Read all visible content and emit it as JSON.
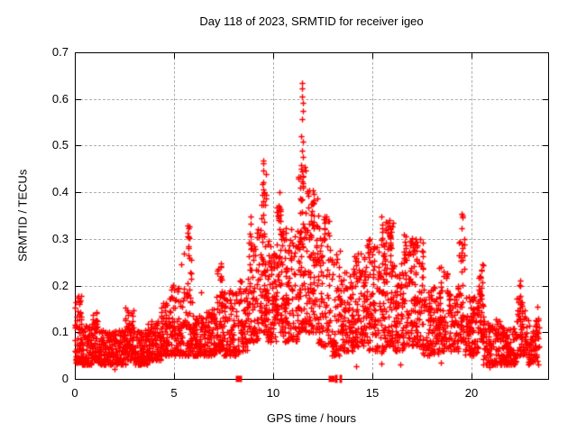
{
  "title": "Day 118 of 2023, SRMTID for receiver igeo",
  "colors": {
    "points": "#ff0000",
    "grid": "#b0b0b0",
    "axis": "#000000",
    "background": "#ffffff",
    "text": "#000000"
  },
  "chart_data": {
    "type": "scatter",
    "title": "Day 118 of 2023, SRMTID for receiver igeo",
    "xlabel": "GPS time / hours",
    "ylabel": "SRMTID / TECUs",
    "series_name": "SRMTID",
    "xlim": [
      0,
      23.86
    ],
    "ylim": [
      0,
      0.7
    ],
    "grid": true,
    "legend": "none",
    "xticks": [
      {
        "v": 0,
        "label": "0",
        "grid": false
      },
      {
        "v": 5,
        "label": "5",
        "grid": true
      },
      {
        "v": 10,
        "label": "10",
        "grid": true
      },
      {
        "v": 15,
        "label": "15",
        "grid": true
      },
      {
        "v": 20,
        "label": "20",
        "grid": true
      }
    ],
    "yticks": [
      {
        "v": 0.0,
        "label": "0",
        "grid": false
      },
      {
        "v": 0.1,
        "label": "0.1",
        "grid": true
      },
      {
        "v": 0.2,
        "label": "0.2",
        "grid": true
      },
      {
        "v": 0.3,
        "label": "0.3",
        "grid": true
      },
      {
        "v": 0.4,
        "label": "0.4",
        "grid": true
      },
      {
        "v": 0.5,
        "label": "0.5",
        "grid": true
      },
      {
        "v": 0.6,
        "label": "0.6",
        "grid": true
      },
      {
        "v": 0.7,
        "label": "0.7",
        "grid": false
      }
    ],
    "marker": {
      "shape": "plus",
      "size": 7,
      "color": "#ff0000"
    },
    "seed": 118,
    "column_snap": {
      "interval": 0.1,
      "jitter": 0.05,
      "fraction": 0.7
    },
    "bands_keys": [
      "t0",
      "t1",
      "n",
      "y_min",
      "y_max",
      "skew"
    ],
    "bands": [
      [
        0.02,
        0.35,
        70,
        0.035,
        0.18,
        1.6
      ],
      [
        0.35,
        0.85,
        80,
        0.03,
        0.115,
        1.8
      ],
      [
        0.85,
        1.15,
        55,
        0.04,
        0.145,
        1.6
      ],
      [
        1.15,
        2.55,
        210,
        0.03,
        0.105,
        1.5
      ],
      [
        2.55,
        2.95,
        70,
        0.04,
        0.155,
        1.6
      ],
      [
        2.95,
        3.65,
        105,
        0.03,
        0.105,
        1.5
      ],
      [
        3.65,
        4.35,
        105,
        0.04,
        0.125,
        1.5
      ],
      [
        4.35,
        4.75,
        60,
        0.05,
        0.165,
        1.5
      ],
      [
        4.75,
        5.35,
        80,
        0.05,
        0.205,
        1.7
      ],
      [
        5.35,
        5.95,
        80,
        0.05,
        0.27,
        1.8
      ],
      [
        5.95,
        6.55,
        80,
        0.05,
        0.135,
        1.5
      ],
      [
        6.55,
        7.15,
        80,
        0.05,
        0.15,
        1.5
      ],
      [
        7.15,
        7.5,
        50,
        0.06,
        0.25,
        1.7
      ],
      [
        7.5,
        8.28,
        95,
        0.05,
        0.19,
        1.6
      ],
      [
        8.32,
        8.75,
        55,
        0.06,
        0.22,
        1.5
      ],
      [
        8.75,
        9.35,
        80,
        0.08,
        0.33,
        1.7
      ],
      [
        9.35,
        9.65,
        60,
        0.1,
        0.44,
        1.6
      ],
      [
        9.65,
        10.15,
        80,
        0.08,
        0.3,
        1.5
      ],
      [
        10.15,
        10.5,
        60,
        0.1,
        0.38,
        1.5
      ],
      [
        10.5,
        11.25,
        105,
        0.08,
        0.33,
        1.5
      ],
      [
        11.25,
        11.75,
        90,
        0.1,
        0.47,
        1.5
      ],
      [
        11.75,
        12.25,
        80,
        0.1,
        0.41,
        1.6
      ],
      [
        12.25,
        12.95,
        90,
        0.07,
        0.35,
        1.7
      ],
      [
        12.97,
        13.45,
        60,
        0.05,
        0.28,
        1.7
      ],
      [
        13.45,
        14.05,
        85,
        0.06,
        0.23,
        1.5
      ],
      [
        14.05,
        14.65,
        85,
        0.07,
        0.27,
        1.5
      ],
      [
        14.65,
        15.25,
        85,
        0.06,
        0.3,
        1.5
      ],
      [
        15.25,
        15.65,
        60,
        0.05,
        0.33,
        1.5
      ],
      [
        15.65,
        16.05,
        65,
        0.07,
        0.34,
        1.5
      ],
      [
        16.05,
        16.55,
        70,
        0.06,
        0.25,
        1.5
      ],
      [
        16.55,
        17.05,
        70,
        0.07,
        0.31,
        1.6
      ],
      [
        17.05,
        17.55,
        70,
        0.07,
        0.3,
        1.5
      ],
      [
        17.55,
        18.35,
        100,
        0.05,
        0.2,
        1.5
      ],
      [
        18.35,
        18.85,
        65,
        0.06,
        0.24,
        1.5
      ],
      [
        18.85,
        19.35,
        60,
        0.06,
        0.2,
        1.5
      ],
      [
        19.35,
        19.65,
        42,
        0.08,
        0.3,
        1.3
      ],
      [
        19.65,
        20.35,
        85,
        0.05,
        0.18,
        1.5
      ],
      [
        20.35,
        20.6,
        38,
        0.08,
        0.25,
        1.4
      ],
      [
        20.6,
        21.55,
        120,
        0.03,
        0.13,
        1.5
      ],
      [
        21.55,
        22.25,
        100,
        0.03,
        0.12,
        1.5
      ],
      [
        22.25,
        22.75,
        65,
        0.05,
        0.175,
        1.5
      ],
      [
        22.75,
        23.4,
        75,
        0.03,
        0.13,
        1.4
      ]
    ],
    "spikes_keys": [
      "t",
      "spread",
      "n",
      "y0",
      "y1"
    ],
    "spikes": [
      [
        5.72,
        0.07,
        12,
        0.26,
        0.335
      ],
      [
        7.32,
        0.06,
        8,
        0.16,
        0.25
      ],
      [
        8.85,
        0.05,
        8,
        0.27,
        0.365
      ],
      [
        9.5,
        0.05,
        10,
        0.37,
        0.475
      ],
      [
        10.3,
        0.05,
        8,
        0.32,
        0.43
      ],
      [
        11.45,
        0.05,
        8,
        0.38,
        0.46
      ],
      [
        12.0,
        0.05,
        7,
        0.33,
        0.415
      ],
      [
        12.6,
        0.05,
        6,
        0.3,
        0.355
      ],
      [
        15.5,
        0.05,
        6,
        0.28,
        0.35
      ],
      [
        15.9,
        0.06,
        10,
        0.25,
        0.345
      ],
      [
        16.65,
        0.05,
        6,
        0.24,
        0.305
      ],
      [
        17.25,
        0.05,
        6,
        0.24,
        0.3
      ],
      [
        19.5,
        0.04,
        8,
        0.27,
        0.355
      ],
      [
        20.45,
        0.05,
        6,
        0.17,
        0.25
      ],
      [
        22.45,
        0.06,
        8,
        0.12,
        0.21
      ]
    ],
    "outliers": [
      [
        11.44,
        0.635
      ],
      [
        11.47,
        0.622
      ],
      [
        11.44,
        0.605
      ],
      [
        11.48,
        0.592
      ],
      [
        11.5,
        0.575
      ],
      [
        11.46,
        0.556
      ],
      [
        11.43,
        0.52
      ],
      [
        11.5,
        0.508
      ],
      [
        11.46,
        0.49
      ],
      [
        11.52,
        0.476
      ],
      [
        0.12,
        0.175
      ],
      [
        2.0,
        0.022
      ],
      [
        6.35,
        0.185
      ],
      [
        9.48,
        0.468
      ],
      [
        14.2,
        0.028
      ],
      [
        15.45,
        0.033
      ],
      [
        16.4,
        0.03
      ],
      [
        18.45,
        0.035
      ],
      [
        20.9,
        0.025
      ],
      [
        22.45,
        0.21
      ],
      [
        23.3,
        0.155
      ]
    ],
    "gap_markers": {
      "squares": [
        8.28,
        12.93
      ],
      "bars": [
        13.2,
        13.39
      ]
    }
  }
}
